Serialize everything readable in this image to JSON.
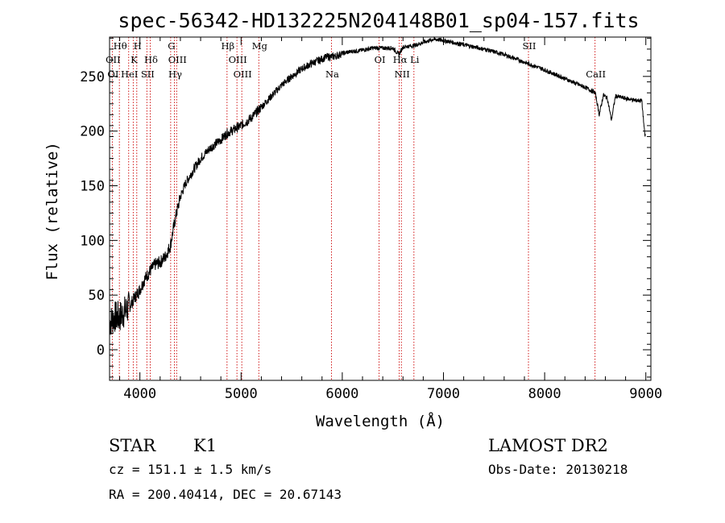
{
  "chart_data": {
    "type": "line",
    "title": "spec-56342-HD132225N204148B01_sp04-157.fits",
    "xlabel": "Wavelength (Å)",
    "ylabel": "Flux (relative)",
    "xlim": [
      3700,
      9050
    ],
    "ylim": [
      -28,
      286
    ],
    "x_ticks": [
      4000,
      5000,
      6000,
      7000,
      8000,
      9000
    ],
    "y_ticks": [
      0,
      50,
      100,
      150,
      200,
      250
    ],
    "grid": false,
    "series": [
      {
        "x": [
          3700,
          3750,
          3800,
          3850,
          3900,
          3950,
          4000,
          4050,
          4100,
          4150,
          4200,
          4250,
          4300,
          4350,
          4400,
          4450,
          4500,
          4600,
          4700,
          4800,
          4860,
          4900,
          5000,
          5100,
          5200,
          5300,
          5400,
          5500,
          5600,
          5700,
          5800,
          5850,
          5900,
          5950,
          6000,
          6100,
          6200,
          6300,
          6400,
          6500,
          6560,
          6600,
          6700,
          6800,
          6900,
          7000,
          7100,
          7200,
          7400,
          7600,
          7800,
          8000,
          8200,
          8400,
          8500,
          8540,
          8580,
          8620,
          8660,
          8700,
          8800,
          8900,
          8960,
          8990
        ],
        "y": [
          25,
          30,
          30,
          35,
          40,
          48,
          55,
          65,
          72,
          78,
          80,
          85,
          95,
          120,
          140,
          152,
          160,
          175,
          185,
          192,
          198,
          200,
          205,
          212,
          222,
          232,
          242,
          250,
          257,
          262,
          266,
          268,
          268,
          269,
          271,
          273,
          274,
          276,
          276,
          276,
          270,
          277,
          278,
          281,
          284,
          283,
          281,
          279,
          275,
          270,
          263,
          256,
          248,
          240,
          235,
          215,
          233,
          230,
          210,
          232,
          230,
          228,
          228,
          196
        ]
      }
    ],
    "spectral_lines": [
      {
        "label": "Hθ",
        "x": 3797,
        "row": 0
      },
      {
        "label": "H",
        "x": 3969,
        "row": 0
      },
      {
        "label": "G",
        "x": 4304,
        "row": 0
      },
      {
        "label": "Hβ",
        "x": 4861,
        "row": 0
      },
      {
        "label": "Mg",
        "x": 5175,
        "row": 0
      },
      {
        "label": "SII",
        "x": 7840,
        "row": 0
      },
      {
        "label": "OII",
        "x": 3727,
        "row": 1
      },
      {
        "label": "K",
        "x": 3934,
        "row": 1
      },
      {
        "label": "Hδ",
        "x": 4102,
        "row": 1
      },
      {
        "label": "OIII",
        "x": 4363,
        "row": 1
      },
      {
        "label": "OIII",
        "x": 4959,
        "row": 1
      },
      {
        "label": "OI",
        "x": 6364,
        "row": 1
      },
      {
        "label": "Hα",
        "x": 6563,
        "row": 1
      },
      {
        "label": "Li",
        "x": 6708,
        "row": 1
      },
      {
        "label": "OI",
        "x": 3727,
        "row": 2
      },
      {
        "label": "HeI",
        "x": 3889,
        "row": 2
      },
      {
        "label": "SII",
        "x": 4069,
        "row": 2
      },
      {
        "label": "Hγ",
        "x": 4341,
        "row": 2
      },
      {
        "label": "OIII",
        "x": 5007,
        "row": 2
      },
      {
        "label": "Na",
        "x": 5893,
        "row": 2
      },
      {
        "label": "NII",
        "x": 6584,
        "row": 2
      },
      {
        "label": "CaII",
        "x": 8498,
        "row": 2
      }
    ]
  },
  "info": {
    "class": "STAR",
    "subclass": "K1",
    "survey": "LAMOST DR2",
    "cz": "cz = 151.1 ± 1.5 km/s",
    "obs_date": "Obs-Date: 20130218",
    "radec": "RA = 200.40414, DEC =  20.67143"
  },
  "colors": {
    "spectrum": "#000000",
    "line_marker": "#cc0000"
  }
}
